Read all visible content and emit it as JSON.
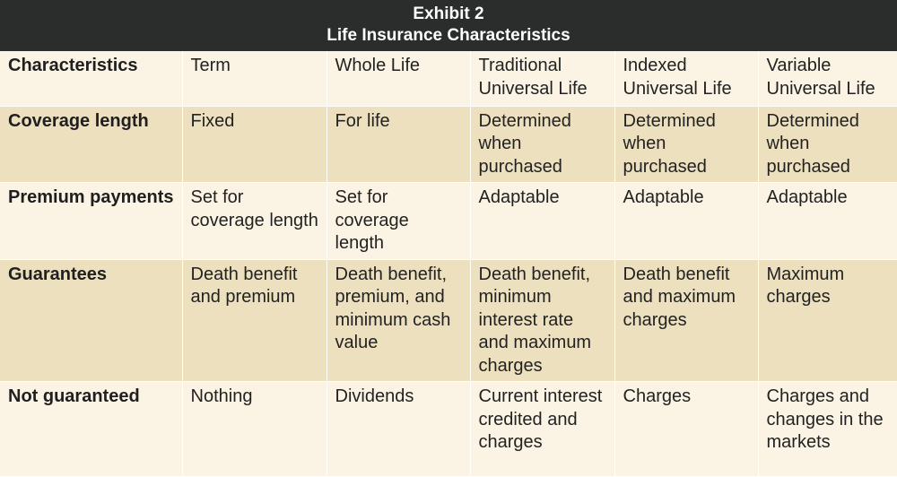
{
  "exhibit": {
    "title_line1": "Exhibit 2",
    "title_line2": "Life Insurance Characteristics"
  },
  "table": {
    "columns": [
      "Characteristics",
      "Term",
      "Whole Life",
      "Traditional Universal Life",
      "Indexed Universal Life",
      "Variable Universal Life"
    ],
    "rows": [
      {
        "label": "Coverage length",
        "cells": [
          "Fixed",
          "For life",
          "Determined when purchased",
          "Determined when purchased",
          "Determined when purchased"
        ]
      },
      {
        "label": "Premium payments",
        "cells": [
          "Set for coverage length",
          "Set for coverage length",
          "Adaptable",
          "Adaptable",
          "Adaptable"
        ]
      },
      {
        "label": "Guarantees",
        "cells": [
          "Death benefit and premium",
          "Death benefit, premium, and minimum cash value",
          "Death benefit, minimum interest rate and maximum charges",
          "Death benefit and maximum charges",
          "Maximum charges"
        ]
      },
      {
        "label": "Not guaranteed",
        "cells": [
          "Nothing",
          "Dividends",
          "Current interest credited and charges",
          "Charges",
          "Charges and changes in the markets"
        ]
      }
    ]
  },
  "colors": {
    "header_bg": "#2b2d2c",
    "row_light": "#fbf4e4",
    "row_dark": "#ede0bf",
    "text": "#222222"
  }
}
